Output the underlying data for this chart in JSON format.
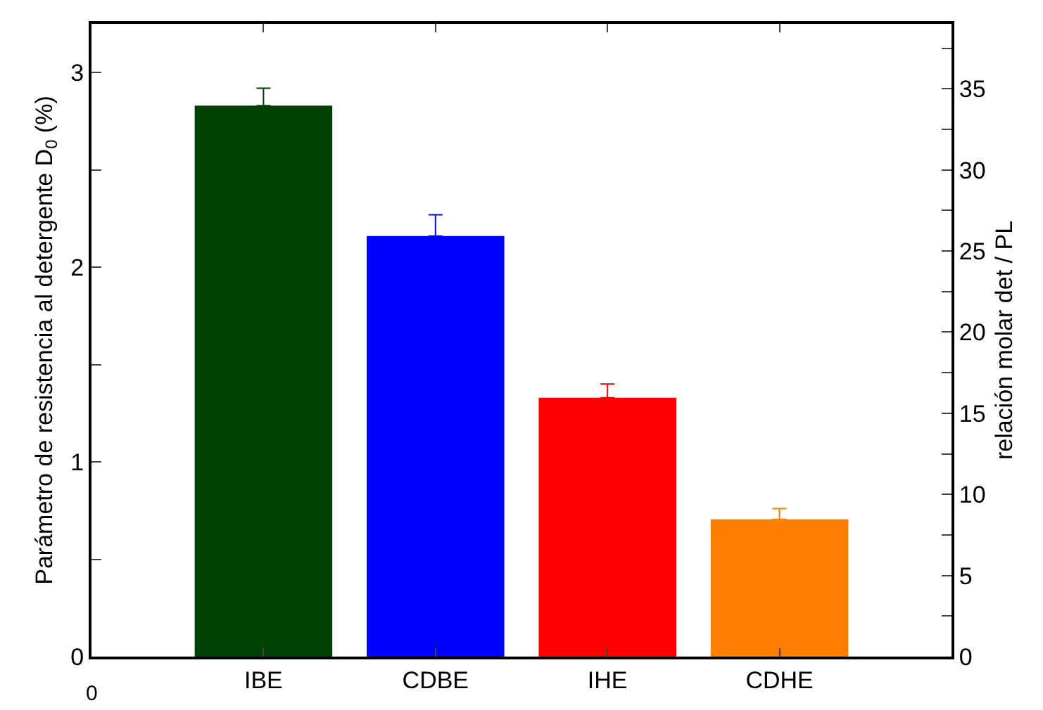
{
  "chart_data": {
    "type": "bar",
    "ylabel": "Parámetro de resistencia al detergente D$_{0}$ (%)",
    "y2label": "relación molar det / PL",
    "categories": [
      "IBE",
      "CDBE",
      "IHE",
      "CDHE"
    ],
    "values": [
      2.83,
      2.16,
      1.33,
      0.705
    ],
    "colors": [
      "#004005",
      "#0000ff",
      "#ff0000",
      "#ff8000"
    ],
    "errors": [
      [
        2.83,
        2.92
      ],
      [
        2.16,
        2.27
      ],
      [
        1.33,
        1.4
      ],
      [
        0.705,
        0.76
      ]
    ],
    "ylim": [
      0,
      3.25
    ],
    "yticks": [
      0,
      {
        "value": 0.5,
        "label": null
      },
      1,
      {
        "value": 1.5,
        "label": null
      },
      2,
      {
        "value": 2.5,
        "label": null
      },
      3
    ],
    "y2lim": [
      0,
      39
    ],
    "y2ticks": [
      0,
      {
        "value": 2.5,
        "label": null
      },
      5,
      {
        "value": 7.5,
        "label": null
      },
      10,
      {
        "value": 12.5,
        "label": null
      },
      15,
      {
        "value": 17.5,
        "label": null
      },
      20,
      {
        "value": 22.5,
        "label": null
      },
      25,
      {
        "value": 27.5,
        "label": null
      },
      30,
      {
        "value": 32.5,
        "label": null
      },
      35,
      {
        "value": 37.5,
        "label": null
      }
    ],
    "annotations": [
      "0"
    ]
  }
}
